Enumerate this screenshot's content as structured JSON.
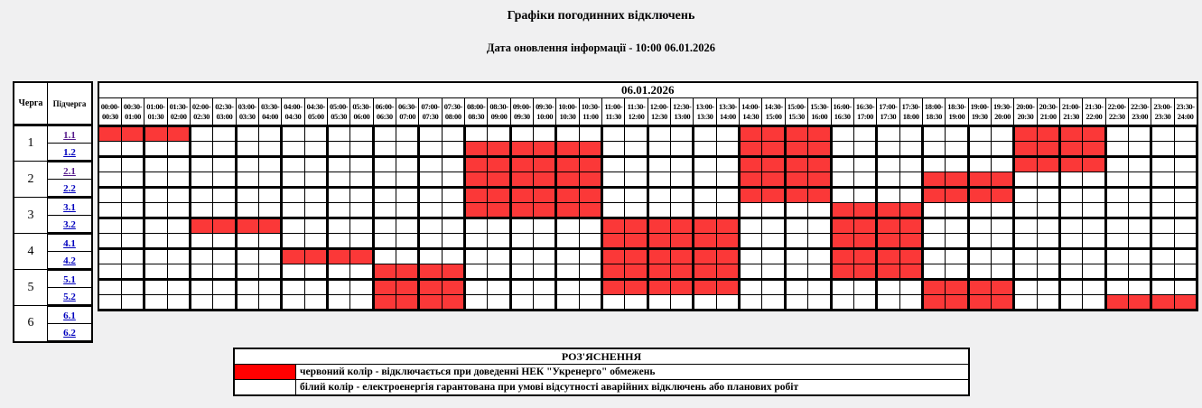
{
  "page": {
    "title": "Графіки погодинних відключень",
    "subtitle": "Дата оновлення інформації - 10:00 06.01.2026"
  },
  "table": {
    "date_header": "06.01.2026",
    "col1_header": "Черга",
    "col2_header": "Підчерга"
  },
  "chart_data": {
    "type": "heatmap",
    "title": "Графіки погодинних відключень",
    "updated": "10:00 06.01.2026",
    "date": "06.01.2026",
    "x_slots": [
      "00:00-00:30",
      "00:30-01:00",
      "01:00-01:30",
      "01:30-02:00",
      "02:00-02:30",
      "02:30-03:00",
      "03:00-03:30",
      "03:30-04:00",
      "04:00-04:30",
      "04:30-05:00",
      "05:00-05:30",
      "05:30-06:00",
      "06:00-06:30",
      "06:30-07:00",
      "07:00-07:30",
      "07:30-08:00",
      "08:00-08:30",
      "08:30-09:00",
      "09:00-09:30",
      "09:30-10:00",
      "10:00-10:30",
      "10:30-11:00",
      "11:00-11:30",
      "11:30-12:00",
      "12:00-12:30",
      "12:30-13:00",
      "13:00-13:30",
      "13:30-14:00",
      "14:00-14:30",
      "14:30-15:00",
      "15:00-15:30",
      "15:30-16:00",
      "16:00-16:30",
      "16:30-17:00",
      "17:00-17:30",
      "17:30-18:00",
      "18:00-18:30",
      "18:30-19:00",
      "19:00-19:30",
      "19:30-20:00",
      "20:00-20:30",
      "20:30-21:00",
      "21:00-21:30",
      "21:30-22:00",
      "22:00-22:30",
      "22:30-23:00",
      "23:00-23:30",
      "23:30-24:00"
    ],
    "cell_states": {
      "red": "outage",
      "white": "power-on"
    },
    "queues": [
      {
        "num": "1",
        "subs": [
          {
            "label": "1.1",
            "visited": true,
            "outages": [
              "00:00-02:00",
              "14:00-16:00",
              "20:00-22:00"
            ]
          },
          {
            "label": "1.2",
            "visited": false,
            "outages": [
              "08:00-11:00",
              "14:00-16:00",
              "20:00-22:00"
            ]
          }
        ]
      },
      {
        "num": "2",
        "subs": [
          {
            "label": "2.1",
            "visited": true,
            "outages": [
              "08:00-11:00",
              "14:00-16:00",
              "20:00-22:00"
            ]
          },
          {
            "label": "2.2",
            "visited": false,
            "outages": [
              "08:00-11:00",
              "14:00-16:00",
              "18:00-20:00"
            ]
          }
        ]
      },
      {
        "num": "3",
        "subs": [
          {
            "label": "3.1",
            "visited": false,
            "outages": [
              "08:00-11:00",
              "14:00-16:00",
              "18:00-20:00"
            ]
          },
          {
            "label": "3.2",
            "visited": false,
            "outages": [
              "08:00-11:00",
              "16:00-18:00"
            ]
          }
        ]
      },
      {
        "num": "4",
        "subs": [
          {
            "label": "4.1",
            "visited": false,
            "outages": [
              "02:00-04:00",
              "11:00-14:00",
              "16:00-18:00"
            ]
          },
          {
            "label": "4.2",
            "visited": false,
            "outages": [
              "11:00-14:00",
              "16:00-18:00"
            ]
          }
        ]
      },
      {
        "num": "5",
        "subs": [
          {
            "label": "5.1",
            "visited": false,
            "outages": [
              "04:00-06:00",
              "11:00-14:00",
              "16:00-18:00"
            ]
          },
          {
            "label": "5.2",
            "visited": false,
            "outages": [
              "06:00-08:00",
              "11:00-14:00",
              "16:00-18:00"
            ]
          }
        ]
      },
      {
        "num": "6",
        "subs": [
          {
            "label": "6.1",
            "visited": false,
            "outages": [
              "06:00-08:00",
              "11:00-14:00",
              "18:00-20:00"
            ]
          },
          {
            "label": "6.2",
            "visited": false,
            "outages": [
              "06:00-08:00",
              "18:00-20:00",
              "22:00-24:00"
            ]
          }
        ]
      }
    ]
  },
  "legend": {
    "title": "РОЗ'ЯСНЕННЯ",
    "rows": [
      {
        "swatch_color": "#FF0000",
        "text": "червоний колір - відключається при доведенні НЕК \"Укренерго\" обмежень"
      },
      {
        "swatch_color": "#FFFFFF",
        "text": "білий колір - електроенергія гарантована при умові відсутності аварійних відключень або планових робіт"
      }
    ]
  },
  "colors": {
    "red_cell": "#FB3838",
    "legend_red": "#FF0000",
    "link": "#0000BE",
    "link_visited": "#551A8B",
    "background": "#F0F0F1",
    "grid_border": "#000000"
  }
}
